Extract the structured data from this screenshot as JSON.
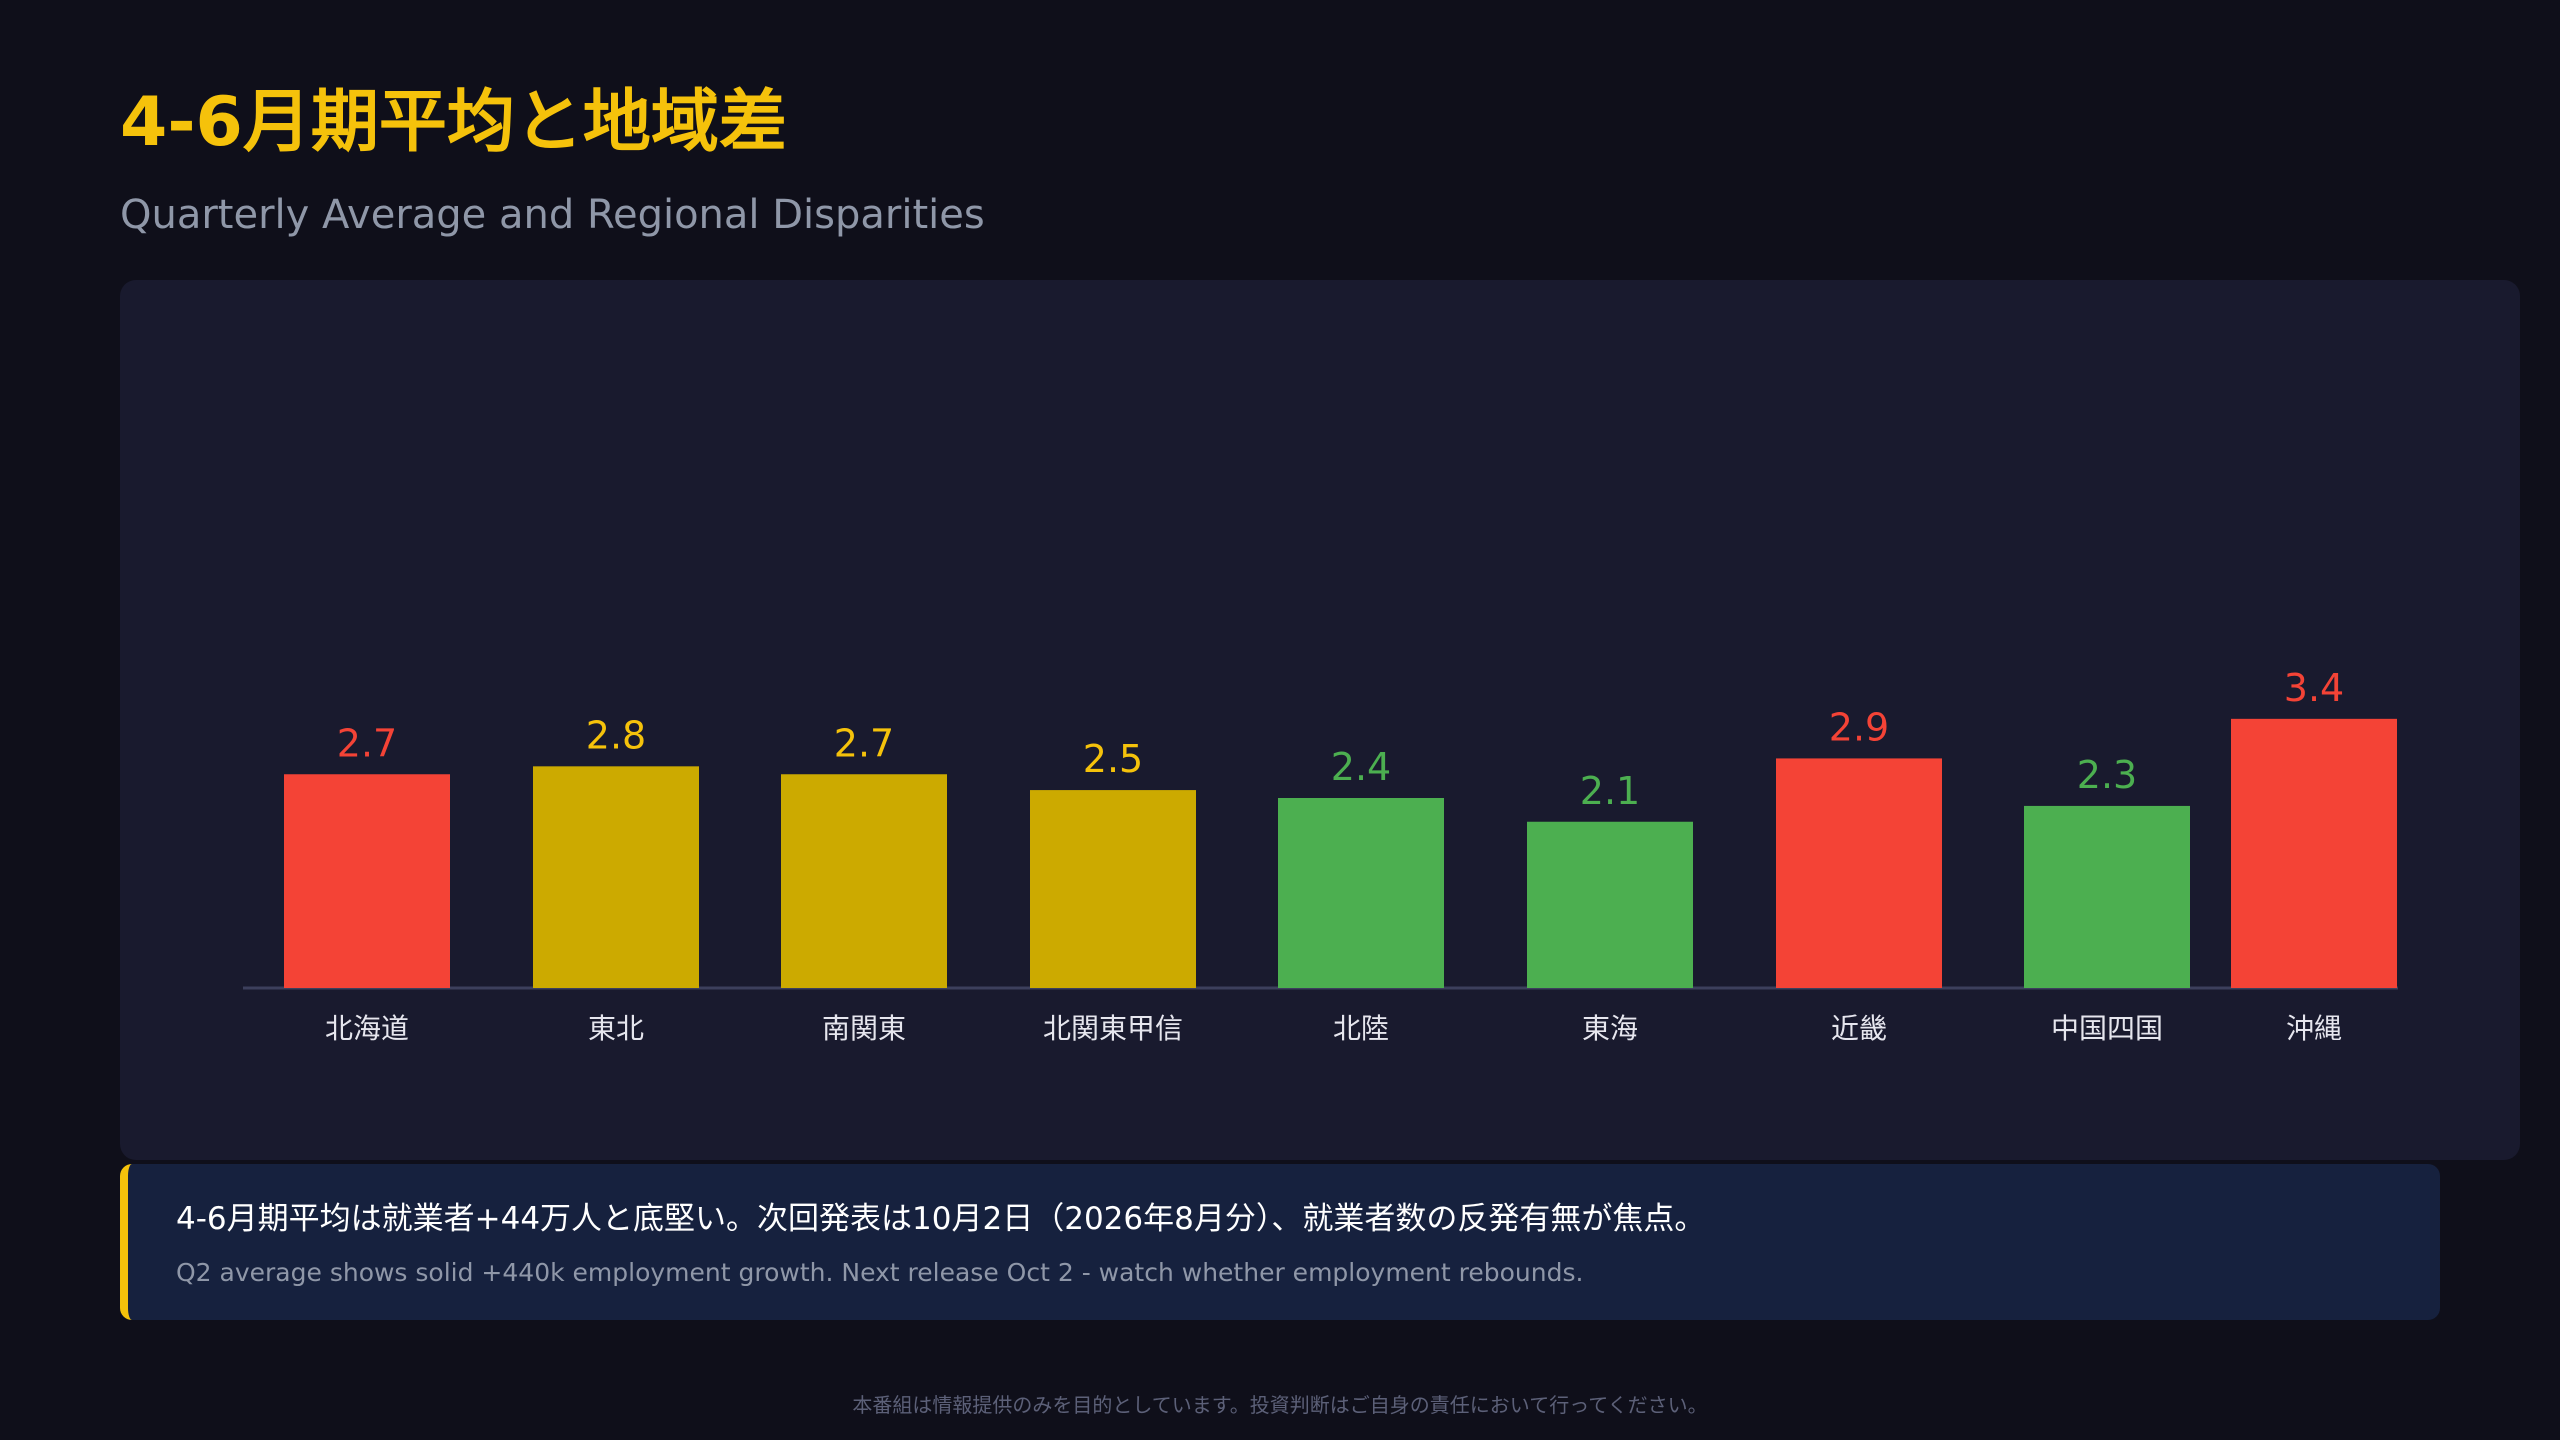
{
  "page": {
    "title": "4-6月期平均と地域差",
    "subtitle": "Quarterly Average and Regional Disparities",
    "disclaimer": "本番組は情報提供のみを目的としています。投資判断はご自身の責任において行ってください。"
  },
  "note": {
    "ja": "4-6月期平均は就業者+44万人と底堅い。次回発表は10月2日（2026年8月分）、就業者数の反発有無が焦点。",
    "en": "Q2 average shows solid +440k employment growth. Next release Oct 2 - watch whether employment rebounds."
  },
  "colors": {
    "red": "#f44336",
    "yellow": "#ccaa00",
    "green": "#4caf50",
    "label_red": "#f44336",
    "label_yellow": "#f5c20b",
    "label_green": "#4caf50",
    "axis": "#3c3f5c",
    "tick_text": "#e6e6ee"
  },
  "chart_data": {
    "type": "bar",
    "title": "",
    "xlabel": "",
    "ylabel": "",
    "ylim": [
      0,
      7.2
    ],
    "grid": false,
    "categories": [
      "北海道",
      "東北",
      "南関東",
      "北関東甲信",
      "北陸",
      "東海",
      "近畿",
      "中国四国",
      "沖縄"
    ],
    "values": [
      2.7,
      2.8,
      2.7,
      2.5,
      2.4,
      2.1,
      2.9,
      2.3,
      3.4
    ],
    "value_labels": [
      "2.7",
      "2.8",
      "2.7",
      "2.5",
      "2.4",
      "2.1",
      "2.9",
      "2.3",
      "3.4"
    ],
    "bar_colors": [
      "red",
      "yellow",
      "yellow",
      "yellow",
      "green",
      "green",
      "red",
      "green",
      "red"
    ]
  }
}
